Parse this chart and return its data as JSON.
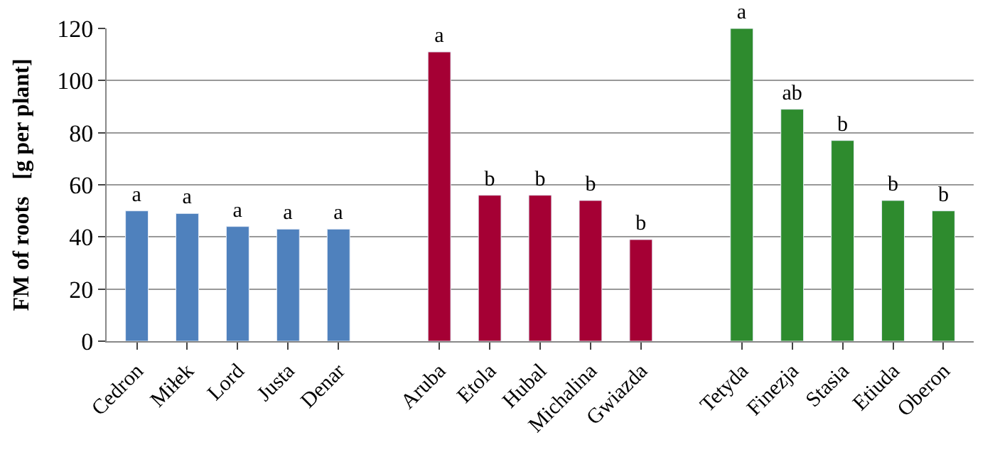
{
  "chart_data": {
    "type": "bar",
    "ylabel": "FM of roots   [g per plant]",
    "categories": [
      "Cedron",
      "Miłek",
      "Lord",
      "Justa",
      "Denar",
      null,
      "Aruba",
      "Etola",
      "Hubal",
      "Michalina",
      "Gwiazda",
      null,
      "Tetyda",
      "Finezja",
      "Stasia",
      "Etiuda",
      "Oberon"
    ],
    "values": [
      50,
      49,
      44,
      43,
      43,
      null,
      111,
      56,
      56,
      54,
      39,
      null,
      120,
      89,
      77,
      54,
      50
    ],
    "colors": [
      "#4f81bd",
      "#4f81bd",
      "#4f81bd",
      "#4f81bd",
      "#4f81bd",
      null,
      "#a50034",
      "#a50034",
      "#a50034",
      "#a50034",
      "#a50034",
      null,
      "#2e8b2e",
      "#2e8b2e",
      "#2e8b2e",
      "#2e8b2e",
      "#2e8b2e"
    ],
    "value_labels": [
      "a",
      "a",
      "a",
      "a",
      "a",
      null,
      "a",
      "b",
      "b",
      "b",
      "b",
      null,
      "a",
      "ab",
      "b",
      "b",
      "b"
    ],
    "ylim": [
      0,
      120
    ],
    "yticks": [
      0,
      20,
      40,
      60,
      80,
      100,
      120
    ],
    "grid": "y"
  }
}
